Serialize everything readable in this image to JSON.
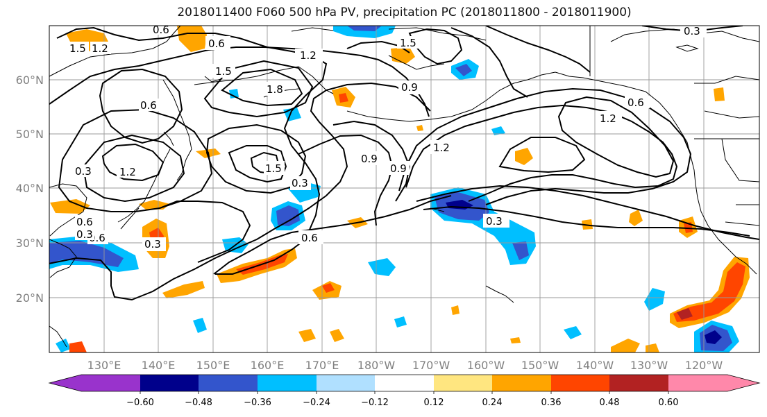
{
  "title": "2018011400 F060 500 hPa PV, precipitation PC (2018011800 - 2018011900)",
  "lat_labels": [
    "60°N",
    "50°N",
    "40°N",
    "30°N",
    "20°N"
  ],
  "lon_labels": [
    "130°E",
    "140°E",
    "150°E",
    "160°E",
    "170°E",
    "180°W",
    "170°W",
    "160°W",
    "150°W",
    "140°W",
    "130°W",
    "120°W"
  ],
  "colorbar": {
    "ticks": [
      "−0.60",
      "−0.48",
      "−0.36",
      "−0.24",
      "−0.12",
      "0.12",
      "0.24",
      "0.36",
      "0.48",
      "0.60"
    ],
    "colors": [
      "#9933cc",
      "#00008b",
      "#3355cc",
      "#00bfff",
      "#b0e0ff",
      "#ffffff",
      "#ffe680",
      "#ffa500",
      "#ff4500",
      "#b22222",
      "#ff88aa"
    ]
  },
  "contour_labels": [
    "1.5",
    "1.2",
    "0.6",
    "0.6",
    "0.3",
    "1.2",
    "1.5",
    "1.5",
    "1.8",
    "0.9",
    "0.3",
    "0.6",
    "0.6",
    "0.6",
    "0.3",
    "1.2",
    "1.2",
    "0.9",
    "0.9",
    "0.3",
    "0.3",
    "0.6",
    "1.5",
    "0.3",
    "0.6",
    "1.2"
  ]
}
